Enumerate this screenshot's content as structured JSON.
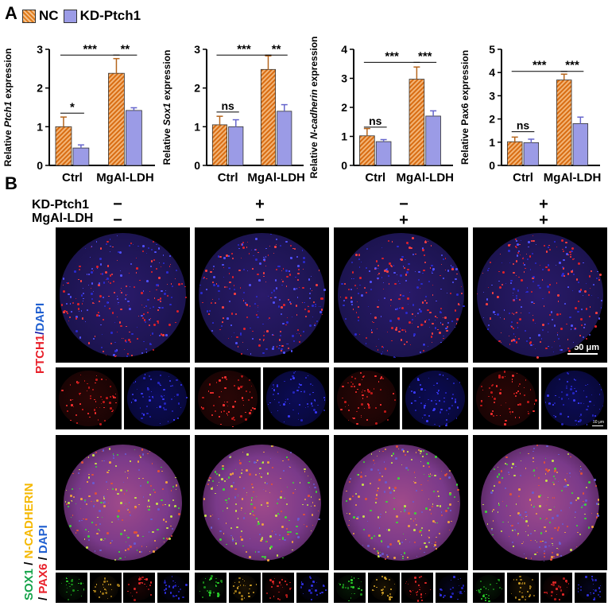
{
  "panelA": {
    "letter": "A",
    "legend": [
      {
        "label": "NC",
        "style": "hatched-orange"
      },
      {
        "label": "KD-Ptch1",
        "style": "lavender"
      }
    ],
    "charts_note": "four bar charts"
  },
  "panelB": {
    "letter": "B",
    "row_labels": {
      "kd": "KD-Ptch1",
      "mg": "MgAl-LDH"
    },
    "columns": [
      {
        "kd": "−",
        "mg": "−"
      },
      {
        "kd": "+",
        "mg": "−"
      },
      {
        "kd": "−",
        "mg": "+"
      },
      {
        "kd": "+",
        "mg": "+"
      }
    ],
    "stain_label_1": {
      "parts": [
        {
          "text": "PTCH1",
          "color": "#e8202a"
        },
        {
          "text": "/",
          "color": "#1f1fa8"
        },
        {
          "text": "DAPI",
          "color": "#1f5fd0"
        }
      ]
    },
    "stain_label_2_line1": {
      "parts": [
        {
          "text": "SOX1",
          "color": "#16a34a"
        },
        {
          "text": " / ",
          "color": "#000000"
        },
        {
          "text": "N-CADHERIN",
          "color": "#f5b800"
        }
      ]
    },
    "stain_label_2_line2": {
      "parts": [
        {
          "text": "/ ",
          "color": "#000000"
        },
        {
          "text": "PAX6",
          "color": "#e8202a"
        },
        {
          "text": " / ",
          "color": "#000000"
        },
        {
          "text": "DAPI",
          "color": "#1f5fd0"
        }
      ]
    },
    "scale_large": "50 μm",
    "scale_small": "50 μm"
  },
  "chart_data": [
    {
      "type": "bar",
      "ylabel_pre": "Relative ",
      "ylabel_italic": "Ptch1",
      "ylabel_post": " expression",
      "categories": [
        "Ctrl",
        "MgAl-LDH"
      ],
      "ylim": [
        0,
        3
      ],
      "yticks": [
        0,
        1,
        2,
        3
      ],
      "series": [
        {
          "name": "NC",
          "values": [
            1.0,
            2.38
          ],
          "errors": [
            0.25,
            0.38
          ]
        },
        {
          "name": "KD-Ptch1",
          "values": [
            0.45,
            1.42
          ],
          "errors": [
            0.08,
            0.07
          ]
        }
      ],
      "annotations": [
        {
          "from": [
            0,
            0
          ],
          "to": [
            0,
            1
          ],
          "level": 1.35,
          "text": "*"
        },
        {
          "from": [
            0,
            0
          ],
          "to": [
            1,
            0
          ],
          "level": 2.85,
          "text": "***"
        },
        {
          "from": [
            1,
            0
          ],
          "to": [
            1,
            1
          ],
          "level": 2.85,
          "text": "**"
        }
      ]
    },
    {
      "type": "bar",
      "ylabel_pre": "Relative ",
      "ylabel_italic": "Sox1",
      "ylabel_post": " expression",
      "categories": [
        "Ctrl",
        "MgAl-LDH"
      ],
      "ylim": [
        0,
        3
      ],
      "yticks": [
        0,
        1,
        2,
        3
      ],
      "series": [
        {
          "name": "NC",
          "values": [
            1.05,
            2.48
          ],
          "errors": [
            0.22,
            0.35
          ]
        },
        {
          "name": "KD-Ptch1",
          "values": [
            1.0,
            1.4
          ],
          "errors": [
            0.18,
            0.17
          ]
        }
      ],
      "annotations": [
        {
          "from": [
            0,
            0
          ],
          "to": [
            0,
            1
          ],
          "level": 1.38,
          "text": "ns"
        },
        {
          "from": [
            0,
            0
          ],
          "to": [
            1,
            0
          ],
          "level": 2.85,
          "text": "***"
        },
        {
          "from": [
            1,
            0
          ],
          "to": [
            1,
            1
          ],
          "level": 2.85,
          "text": "**"
        }
      ]
    },
    {
      "type": "bar",
      "ylabel_pre": "Relative ",
      "ylabel_italic": "N-cadherin",
      "ylabel_post": " expression",
      "categories": [
        "Ctrl",
        "MgAl-LDH"
      ],
      "ylim": [
        0,
        4
      ],
      "yticks": [
        0,
        1,
        2,
        3,
        4
      ],
      "series": [
        {
          "name": "NC",
          "values": [
            1.02,
            2.97
          ],
          "errors": [
            0.25,
            0.42
          ]
        },
        {
          "name": "KD-Ptch1",
          "values": [
            0.82,
            1.7
          ],
          "errors": [
            0.07,
            0.18
          ]
        }
      ],
      "annotations": [
        {
          "from": [
            0,
            0
          ],
          "to": [
            0,
            1
          ],
          "level": 1.32,
          "text": "ns"
        },
        {
          "from": [
            0,
            0
          ],
          "to": [
            1,
            0
          ],
          "level": 3.55,
          "text": "***"
        },
        {
          "from": [
            1,
            0
          ],
          "to": [
            1,
            1
          ],
          "level": 3.55,
          "text": "***"
        }
      ]
    },
    {
      "type": "bar",
      "ylabel_pre": "Relative Pax6 expression",
      "ylabel_italic": "",
      "ylabel_post": "",
      "categories": [
        "Ctrl",
        "MgAl-LDH"
      ],
      "ylim": [
        0,
        5
      ],
      "yticks": [
        0,
        1,
        2,
        3,
        4,
        5
      ],
      "series": [
        {
          "name": "NC",
          "values": [
            1.02,
            3.68
          ],
          "errors": [
            0.2,
            0.25
          ]
        },
        {
          "name": "KD-Ptch1",
          "values": [
            0.98,
            1.8
          ],
          "errors": [
            0.15,
            0.28
          ]
        }
      ],
      "annotations": [
        {
          "from": [
            0,
            0
          ],
          "to": [
            0,
            1
          ],
          "level": 1.45,
          "text": "ns"
        },
        {
          "from": [
            0,
            0
          ],
          "to": [
            1,
            0
          ],
          "level": 4.05,
          "text": "***"
        },
        {
          "from": [
            1,
            0
          ],
          "to": [
            1,
            1
          ],
          "level": 4.05,
          "text": "***"
        }
      ]
    }
  ]
}
